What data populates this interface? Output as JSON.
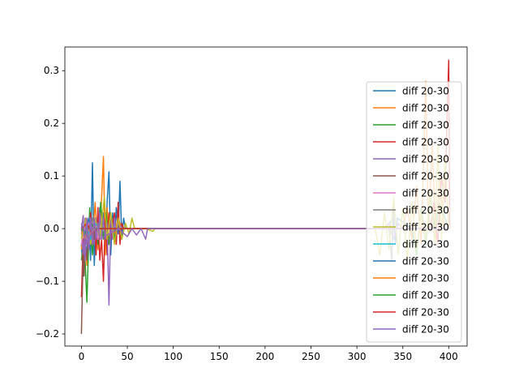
{
  "chart_data": {
    "type": "line",
    "title": "",
    "xlabel": "",
    "ylabel": "",
    "xlim": [
      -18,
      420
    ],
    "ylim": [
      -0.223,
      0.345
    ],
    "x_ticks": [
      0,
      50,
      100,
      150,
      200,
      250,
      300,
      350,
      400
    ],
    "y_ticks": [
      -0.2,
      -0.1,
      0.0,
      0.1,
      0.2,
      0.3
    ],
    "x_tick_labels": [
      "0",
      "50",
      "100",
      "150",
      "200",
      "250",
      "300",
      "350",
      "400"
    ],
    "y_tick_labels": [
      "−0.2",
      "−0.1",
      "0.0",
      "0.1",
      "0.2",
      "0.3"
    ],
    "grid": false,
    "legend_position": "right",
    "series": [
      {
        "name": "diff 20-30",
        "color": "#1f77b4",
        "points": [
          [
            0,
            -0.03
          ],
          [
            2,
            -0.09
          ],
          [
            4,
            -0.02
          ],
          [
            6,
            -0.05
          ],
          [
            8,
            0.02
          ],
          [
            10,
            -0.06
          ],
          [
            12,
            0.125
          ],
          [
            14,
            -0.07
          ],
          [
            16,
            0.01
          ],
          [
            18,
            -0.03
          ],
          [
            20,
            0.04
          ],
          [
            22,
            -0.02
          ],
          [
            24,
            0.03
          ],
          [
            26,
            -0.04
          ],
          [
            28,
            0.05
          ],
          [
            30,
            0.108
          ],
          [
            32,
            -0.05
          ],
          [
            34,
            0.03
          ],
          [
            36,
            -0.02
          ],
          [
            38,
            0.04
          ],
          [
            40,
            -0.01
          ],
          [
            42,
            0.09
          ],
          [
            44,
            -0.02
          ],
          [
            46,
            0.02
          ],
          [
            48,
            0.0
          ],
          [
            60,
            0.0
          ],
          [
            330,
            0.0
          ],
          [
            340,
            0.02
          ],
          [
            342,
            -0.03
          ],
          [
            344,
            0.02
          ],
          [
            360,
            0.0
          ]
        ]
      },
      {
        "name": "diff 20-30",
        "color": "#ff7f0e",
        "points": [
          [
            0,
            -0.04
          ],
          [
            3,
            0.01
          ],
          [
            6,
            -0.07
          ],
          [
            9,
            0.03
          ],
          [
            12,
            -0.02
          ],
          [
            15,
            0.05
          ],
          [
            18,
            -0.04
          ],
          [
            21,
            0.02
          ],
          [
            24,
            0.137
          ],
          [
            26,
            -0.05
          ],
          [
            28,
            0.04
          ],
          [
            30,
            -0.03
          ],
          [
            33,
            0.02
          ],
          [
            36,
            -0.01
          ],
          [
            40,
            0.02
          ],
          [
            44,
            0.0
          ],
          [
            60,
            0.0
          ],
          [
            350,
            0.0
          ],
          [
            355,
            0.04
          ],
          [
            360,
            -0.02
          ],
          [
            365,
            0.08
          ],
          [
            370,
            -0.03
          ],
          [
            375,
            0.28
          ],
          [
            378,
            0.0
          ],
          [
            382,
            0.16
          ],
          [
            386,
            -0.02
          ],
          [
            390,
            0.1
          ],
          [
            395,
            0.0
          ],
          [
            400,
            0.0
          ]
        ]
      },
      {
        "name": "diff 20-30",
        "color": "#2ca02c",
        "points": [
          [
            0,
            -0.06
          ],
          [
            3,
            -0.02
          ],
          [
            6,
            -0.14
          ],
          [
            9,
            0.04
          ],
          [
            12,
            -0.05
          ],
          [
            15,
            0.02
          ],
          [
            18,
            -0.03
          ],
          [
            21,
            0.05
          ],
          [
            24,
            -0.02
          ],
          [
            27,
            0.03
          ],
          [
            30,
            -0.03
          ],
          [
            33,
            0.02
          ],
          [
            36,
            -0.02
          ],
          [
            40,
            0.01
          ],
          [
            45,
            0.0
          ],
          [
            60,
            0.0
          ],
          [
            360,
            0.0
          ],
          [
            365,
            -0.05
          ],
          [
            370,
            0.04
          ],
          [
            375,
            -0.03
          ],
          [
            380,
            0.06
          ],
          [
            385,
            0.0
          ],
          [
            390,
            0.05
          ],
          [
            400,
            0.0
          ]
        ]
      },
      {
        "name": "diff 20-30",
        "color": "#d62728",
        "points": [
          [
            0,
            -0.13
          ],
          [
            2,
            -0.02
          ],
          [
            4,
            -0.06
          ],
          [
            6,
            0.01
          ],
          [
            8,
            -0.04
          ],
          [
            10,
            0.03
          ],
          [
            12,
            -0.03
          ],
          [
            14,
            0.02
          ],
          [
            16,
            -0.05
          ],
          [
            18,
            0.04
          ],
          [
            20,
            -0.06
          ],
          [
            22,
            -0.02
          ],
          [
            24,
            -0.1
          ],
          [
            26,
            0.02
          ],
          [
            28,
            -0.05
          ],
          [
            30,
            0.03
          ],
          [
            32,
            -0.02
          ],
          [
            34,
            0.01
          ],
          [
            36,
            0.03
          ],
          [
            38,
            -0.03
          ],
          [
            40,
            0.05
          ],
          [
            42,
            -0.03
          ],
          [
            44,
            0.01
          ],
          [
            46,
            0.0
          ],
          [
            60,
            0.0
          ],
          [
            380,
            0.0
          ],
          [
            384,
            0.05
          ],
          [
            388,
            -0.03
          ],
          [
            392,
            0.1
          ],
          [
            396,
            0.05
          ],
          [
            398,
            0.2
          ],
          [
            400,
            0.32
          ],
          [
            401,
            0.0
          ]
        ]
      },
      {
        "name": "diff 20-30",
        "color": "#9467bd",
        "points": [
          [
            0,
            0.0
          ],
          [
            2,
            -0.05
          ],
          [
            4,
            0.02
          ],
          [
            6,
            -0.03
          ],
          [
            8,
            0.01
          ],
          [
            10,
            -0.02
          ],
          [
            12,
            0.01
          ],
          [
            14,
            -0.03
          ],
          [
            16,
            0.02
          ],
          [
            18,
            -0.02
          ],
          [
            20,
            0.03
          ],
          [
            22,
            -0.02
          ],
          [
            24,
            0.02
          ],
          [
            26,
            -0.02
          ],
          [
            28,
            0.01
          ],
          [
            30,
            -0.145
          ],
          [
            32,
            0.02
          ],
          [
            34,
            -0.02
          ],
          [
            36,
            0.02
          ],
          [
            38,
            -0.01
          ],
          [
            40,
            0.01
          ],
          [
            45,
            0.0
          ],
          [
            60,
            0.0
          ],
          [
            330,
            0.0
          ],
          [
            335,
            0.01
          ],
          [
            340,
            -0.02
          ],
          [
            345,
            0.01
          ],
          [
            350,
            0.0
          ]
        ]
      },
      {
        "name": "diff 20-30",
        "color": "#8c564b",
        "points": [
          [
            0,
            -0.2
          ],
          [
            1,
            -0.12
          ],
          [
            2,
            -0.05
          ],
          [
            3,
            -0.09
          ],
          [
            4,
            -0.02
          ],
          [
            6,
            -0.06
          ],
          [
            8,
            -0.01
          ],
          [
            10,
            -0.03
          ],
          [
            12,
            0.0
          ],
          [
            14,
            -0.02
          ],
          [
            16,
            0.01
          ],
          [
            20,
            0.0
          ],
          [
            60,
            0.0
          ],
          [
            400,
            0.0
          ]
        ]
      },
      {
        "name": "diff 20-30",
        "color": "#e377c2",
        "points": [
          [
            0,
            -0.03
          ],
          [
            3,
            0.01
          ],
          [
            6,
            -0.02
          ],
          [
            9,
            0.02
          ],
          [
            12,
            -0.01
          ],
          [
            15,
            0.01
          ],
          [
            18,
            -0.02
          ],
          [
            21,
            0.01
          ],
          [
            25,
            0.0
          ],
          [
            60,
            0.0
          ],
          [
            400,
            0.0
          ]
        ]
      },
      {
        "name": "diff 20-30",
        "color": "#7f7f7f",
        "points": [
          [
            0,
            -0.02
          ],
          [
            4,
            0.01
          ],
          [
            8,
            -0.03
          ],
          [
            12,
            0.02
          ],
          [
            16,
            -0.01
          ],
          [
            20,
            0.01
          ],
          [
            25,
            0.0
          ],
          [
            60,
            0.0
          ],
          [
            335,
            0.0
          ],
          [
            338,
            -0.06
          ],
          [
            340,
            0.04
          ],
          [
            343,
            0.0
          ],
          [
            400,
            0.0
          ]
        ]
      },
      {
        "name": "diff 20-30",
        "color": "#bcbd22",
        "points": [
          [
            0,
            -0.02
          ],
          [
            5,
            0.02
          ],
          [
            10,
            -0.03
          ],
          [
            15,
            0.02
          ],
          [
            20,
            -0.02
          ],
          [
            25,
            0.06
          ],
          [
            28,
            -0.02
          ],
          [
            32,
            0.03
          ],
          [
            36,
            -0.03
          ],
          [
            40,
            0.02
          ],
          [
            44,
            -0.02
          ],
          [
            48,
            0.01
          ],
          [
            52,
            -0.01
          ],
          [
            55,
            0.02
          ],
          [
            58,
            0.0
          ],
          [
            70,
            0.0
          ],
          [
            78,
            -0.005
          ],
          [
            80,
            0.0
          ],
          [
            320,
            0.0
          ],
          [
            325,
            -0.05
          ],
          [
            330,
            0.03
          ],
          [
            335,
            -0.04
          ],
          [
            340,
            0.06
          ],
          [
            345,
            -0.05
          ],
          [
            350,
            0.04
          ],
          [
            355,
            -0.06
          ],
          [
            360,
            0.05
          ],
          [
            365,
            -0.04
          ],
          [
            370,
            0.03
          ],
          [
            375,
            -0.02
          ],
          [
            380,
            0.07
          ],
          [
            385,
            -0.03
          ],
          [
            388,
            0.16
          ],
          [
            392,
            -0.02
          ],
          [
            396,
            0.14
          ],
          [
            400,
            0.0
          ]
        ]
      },
      {
        "name": "diff 20-30",
        "color": "#17becf",
        "points": [
          [
            0,
            -0.01
          ],
          [
            5,
            0.01
          ],
          [
            10,
            -0.02
          ],
          [
            15,
            0.01
          ],
          [
            20,
            0.0
          ],
          [
            400,
            0.0
          ]
        ]
      },
      {
        "name": "diff 20-30",
        "color": "#1f77b4",
        "points": [
          [
            0,
            0.01
          ],
          [
            4,
            -0.01
          ],
          [
            8,
            0.02
          ],
          [
            12,
            -0.01
          ],
          [
            16,
            0.0
          ],
          [
            400,
            0.0
          ]
        ]
      },
      {
        "name": "diff 20-30",
        "color": "#ff7f0e",
        "points": [
          [
            0,
            -0.01
          ],
          [
            5,
            0.01
          ],
          [
            10,
            -0.01
          ],
          [
            15,
            0.0
          ],
          [
            400,
            0.0
          ]
        ]
      },
      {
        "name": "diff 20-30",
        "color": "#2ca02c",
        "points": [
          [
            0,
            0.0
          ],
          [
            5,
            -0.01
          ],
          [
            10,
            0.01
          ],
          [
            15,
            0.0
          ],
          [
            400,
            0.0
          ]
        ]
      },
      {
        "name": "diff 20-30",
        "color": "#d62728",
        "points": [
          [
            0,
            0.0
          ],
          [
            6,
            0.01
          ],
          [
            12,
            -0.01
          ],
          [
            18,
            0.0
          ],
          [
            400,
            0.0
          ]
        ]
      },
      {
        "name": "diff 20-30",
        "color": "#9467bd",
        "points": [
          [
            0,
            0.0
          ],
          [
            2,
            0.025
          ],
          [
            4,
            -0.06
          ],
          [
            6,
            0.02
          ],
          [
            8,
            -0.04
          ],
          [
            10,
            0.02
          ],
          [
            12,
            -0.03
          ],
          [
            14,
            0.02
          ],
          [
            16,
            -0.02
          ],
          [
            18,
            0.01
          ],
          [
            20,
            -0.02
          ],
          [
            30,
            -0.01
          ],
          [
            40,
            0.0
          ],
          [
            50,
            -0.015
          ],
          [
            55,
            0.0
          ],
          [
            60,
            -0.012
          ],
          [
            65,
            0.0
          ],
          [
            70,
            -0.02
          ],
          [
            72,
            0.0
          ],
          [
            400,
            0.0
          ]
        ]
      }
    ]
  }
}
